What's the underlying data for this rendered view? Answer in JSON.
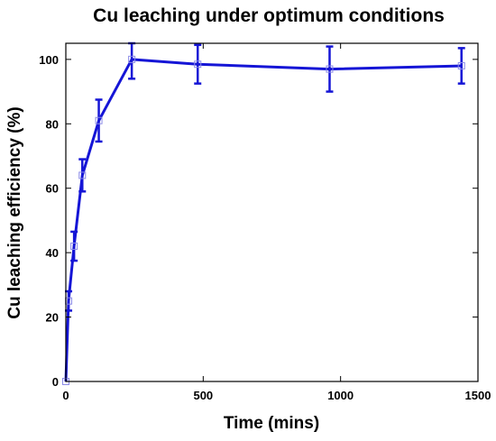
{
  "chart_data": {
    "type": "line",
    "title": "Cu leaching under optimum conditions",
    "xlabel": "Time (mins)",
    "ylabel": "Cu leaching efficiency (%)",
    "xlim": [
      0,
      1500
    ],
    "ylim": [
      0,
      105
    ],
    "xticks": [
      0,
      500,
      1000,
      1500
    ],
    "yticks": [
      0,
      20,
      40,
      60,
      80,
      100
    ],
    "grid": false,
    "legend": "none",
    "series": [
      {
        "color": "#1515d6",
        "marker": "open-square",
        "x": [
          0,
          10,
          30,
          60,
          120,
          240,
          480,
          960,
          1440
        ],
        "y": [
          0,
          25,
          42,
          64,
          81,
          100,
          98.5,
          97,
          98
        ],
        "error": [
          0,
          3,
          4.5,
          5,
          6.5,
          6,
          6,
          7,
          5.5
        ]
      }
    ]
  }
}
